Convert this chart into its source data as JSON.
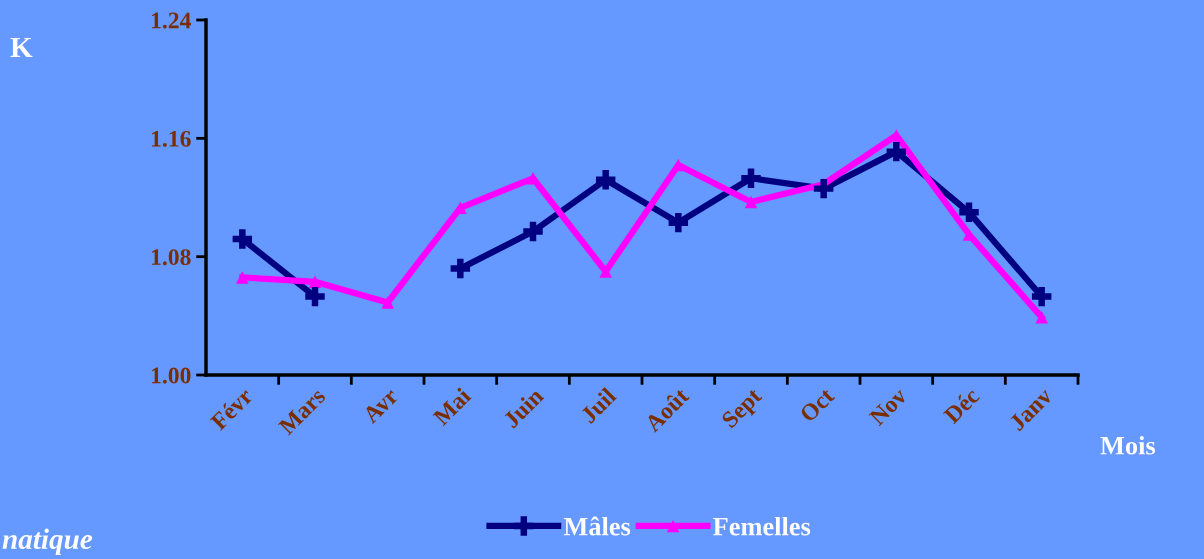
{
  "chart_data": {
    "type": "line",
    "ylabel": "K",
    "xlabel": "Mois",
    "categories": [
      "Févr",
      "Mars",
      "Avr",
      "Mai",
      "Juin",
      "Juil",
      "Août",
      "Sept",
      "Oct",
      "Nov",
      "Déc",
      "Janv"
    ],
    "series": [
      {
        "name": "Mâles",
        "color": "#000080",
        "marker": "cross",
        "values": [
          1.092,
          1.053,
          null,
          1.072,
          1.097,
          1.132,
          1.103,
          1.133,
          1.126,
          1.151,
          1.11,
          1.053
        ]
      },
      {
        "name": "Femelles",
        "color": "#ff00ff",
        "marker": "triangle",
        "values": [
          1.066,
          1.063,
          1.049,
          1.113,
          1.133,
          1.07,
          1.142,
          1.117,
          1.129,
          1.162,
          1.095,
          1.039
        ]
      }
    ],
    "ylim": [
      1.0,
      1.24
    ],
    "yticks": [
      {
        "value": 1.0,
        "label": "1.00"
      },
      {
        "value": 1.08,
        "label": "1.08"
      },
      {
        "value": 1.16,
        "label": "1.16"
      },
      {
        "value": 1.24,
        "label": "1.24"
      }
    ],
    "grid": false,
    "legend": "bottom",
    "line_style": "solid",
    "annotations": [
      "natique"
    ]
  }
}
